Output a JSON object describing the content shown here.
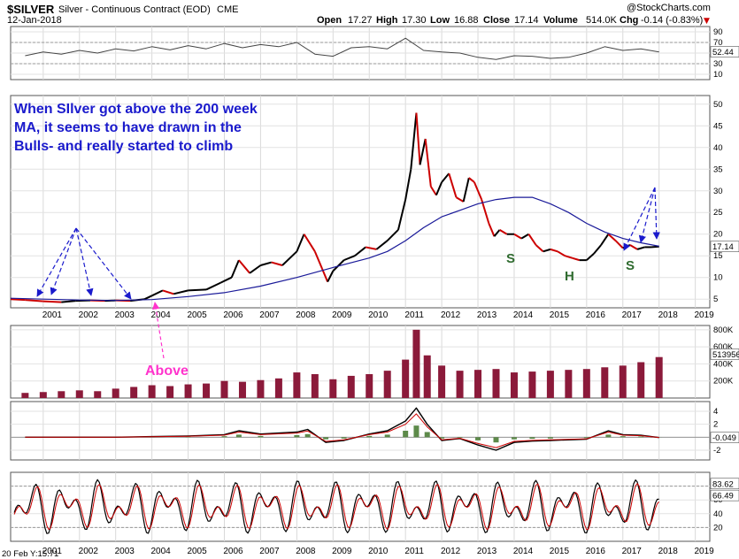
{
  "header": {
    "symbol": "$SILVER",
    "name": "Silver - Continuous Contract (EOD)",
    "exchange": "CME",
    "date": "12-Jan-2018",
    "open_label": "Open",
    "open": "17.27",
    "high_label": "High",
    "high": "17.30",
    "low_label": "Low",
    "low": "16.88",
    "close_label": "Close",
    "close": "17.14",
    "volume_label": "Volume",
    "volume": "514.0K",
    "chg_label": "Chg",
    "chg": "-0.14 (-0.83%)",
    "chg_arrow": "▼",
    "watermark": "@StockCharts.com"
  },
  "footer": {
    "crosshair": "20 Feb Y:15.71"
  },
  "annotations": {
    "note_lines": [
      "When SIlver got above the 200 week",
      "MA,  it seems to have drawn in the",
      "Bulls- and really started to climb"
    ],
    "above": "Above",
    "s1": "S",
    "h": "H",
    "s2": "S"
  },
  "colors": {
    "price_up": "#000000",
    "price_down": "#cc0000",
    "ma": "#1a1a99",
    "annotation": "#1a1acc",
    "above": "#ff33cc",
    "pattern": "#2f6b2f",
    "volume": "#8b1a3a",
    "hist": "#5d8a4a",
    "close_badge": "#1a1a99"
  },
  "chart_data": [
    {
      "type": "line",
      "panel": "rsi",
      "title": "",
      "y_ticks": [
        90,
        70,
        50,
        30,
        10
      ],
      "ylim": [
        0,
        100
      ],
      "last_value": "52.44",
      "reference_lines": [
        70,
        30
      ],
      "x": [
        2000.5,
        2001,
        2001.5,
        2002,
        2002.5,
        2003,
        2003.5,
        2004,
        2004.5,
        2005,
        2005.5,
        2006,
        2006.5,
        2007,
        2007.5,
        2008,
        2008.5,
        2009,
        2009.5,
        2010,
        2010.5,
        2011,
        2011.5,
        2012,
        2012.5,
        2013,
        2013.5,
        2014,
        2014.5,
        2015,
        2015.5,
        2016,
        2016.5,
        2017,
        2017.5,
        2018
      ],
      "values": [
        45,
        52,
        48,
        55,
        50,
        58,
        54,
        62,
        56,
        64,
        58,
        68,
        60,
        66,
        62,
        70,
        48,
        44,
        60,
        62,
        58,
        78,
        55,
        52,
        50,
        42,
        38,
        45,
        44,
        40,
        42,
        50,
        62,
        55,
        58,
        52
      ]
    },
    {
      "type": "line",
      "panel": "price",
      "y_ticks": [
        50,
        45,
        40,
        35,
        30,
        25,
        20,
        15,
        10,
        5
      ],
      "ylim": [
        3,
        52
      ],
      "last_value": "17.14",
      "x_ticks": [
        "2001",
        "2002",
        "2003",
        "2004",
        "2005",
        "2006",
        "2007",
        "2008",
        "2009",
        "2010",
        "2011",
        "2012",
        "2013",
        "2014",
        "2015",
        "2016",
        "2017",
        "2018",
        "2019"
      ],
      "xlim": [
        2000.1,
        2019.4
      ],
      "series": [
        {
          "x": [
            2000.1,
            2000.5,
            2001,
            2001.5,
            2001.9,
            2002.3,
            2002.7,
            2003,
            2003.4,
            2003.8,
            2004.0,
            2004.3,
            2004.6,
            2005,
            2005.5,
            2005.9,
            2006.2,
            2006.4,
            2006.7,
            2007,
            2007.3,
            2007.6,
            2008.0,
            2008.2,
            2008.5,
            2008.7,
            2008.85,
            2009.0,
            2009.3,
            2009.6,
            2009.9,
            2010.2,
            2010.5,
            2010.8,
            2011.0,
            2011.15,
            2011.3,
            2011.4,
            2011.55,
            2011.7,
            2011.85,
            2012.0,
            2012.2,
            2012.4,
            2012.6,
            2012.75,
            2012.9,
            2013.1,
            2013.3,
            2013.45,
            2013.6,
            2013.8,
            2014.0,
            2014.2,
            2014.4,
            2014.6,
            2014.8,
            2015.0,
            2015.2,
            2015.4,
            2015.6,
            2015.8,
            2016.0,
            2016.2,
            2016.4,
            2016.6,
            2016.8,
            2017.0,
            2017.2,
            2017.4,
            2017.6,
            2017.8,
            2018.0
          ],
          "values": [
            5.0,
            4.8,
            4.5,
            4.3,
            4.6,
            4.7,
            4.6,
            4.7,
            4.6,
            5.0,
            5.8,
            7.0,
            6.2,
            7.0,
            7.2,
            8.8,
            10.0,
            14.0,
            11.0,
            12.8,
            13.5,
            12.8,
            16.0,
            20.0,
            16.0,
            12.0,
            9.0,
            11.5,
            14.0,
            15.0,
            17.0,
            16.5,
            18.5,
            21.0,
            28.0,
            35.0,
            48.0,
            36.0,
            42.0,
            31.0,
            29.0,
            32.0,
            34.0,
            28.5,
            27.5,
            33.0,
            32.0,
            28.0,
            22.5,
            19.5,
            21.0,
            20.0,
            20.0,
            19.0,
            20.0,
            17.5,
            16.0,
            16.5,
            16.0,
            15.0,
            14.5,
            14.0,
            14.0,
            15.5,
            17.5,
            20.0,
            18.5,
            16.8,
            17.5,
            16.5,
            17.0,
            17.0,
            17.14
          ]
        },
        {
          "name": "",
          "x": [
            2000.1,
            2001,
            2002,
            2003,
            2004,
            2005,
            2006,
            2007,
            2008,
            2009,
            2010,
            2010.5,
            2011,
            2011.5,
            2012,
            2012.5,
            2013,
            2013.5,
            2014,
            2014.5,
            2015,
            2015.5,
            2016,
            2016.5,
            2017,
            2017.5,
            2018
          ],
          "values": [
            5.2,
            5.0,
            4.8,
            4.7,
            4.9,
            5.6,
            6.5,
            8.0,
            10.0,
            12.3,
            14.5,
            16.0,
            18.5,
            21.5,
            24.0,
            25.5,
            27.0,
            28.0,
            28.5,
            28.5,
            27.0,
            25.0,
            22.5,
            20.5,
            19.0,
            18.0,
            17.2
          ]
        }
      ]
    },
    {
      "type": "bar",
      "panel": "volume",
      "y_ticks": [
        "800K",
        "600K",
        "400K",
        "200K"
      ],
      "ylim": [
        0,
        850000
      ],
      "last_value": "513956",
      "x": [
        2000.5,
        2001,
        2001.5,
        2002,
        2002.5,
        2003,
        2003.5,
        2004,
        2004.5,
        2005,
        2005.5,
        2006,
        2006.5,
        2007,
        2007.5,
        2008,
        2008.5,
        2009,
        2009.5,
        2010,
        2010.5,
        2011,
        2011.3,
        2011.6,
        2012,
        2012.5,
        2013,
        2013.5,
        2014,
        2014.5,
        2015,
        2015.5,
        2016,
        2016.5,
        2017,
        2017.5,
        2018
      ],
      "values": [
        60000,
        70000,
        80000,
        90000,
        80000,
        110000,
        130000,
        150000,
        140000,
        160000,
        170000,
        200000,
        190000,
        210000,
        230000,
        300000,
        280000,
        220000,
        260000,
        280000,
        320000,
        450000,
        800000,
        500000,
        380000,
        320000,
        330000,
        340000,
        300000,
        310000,
        320000,
        330000,
        340000,
        360000,
        380000,
        420000,
        480000
      ]
    },
    {
      "type": "line",
      "panel": "macd",
      "y_ticks": [
        "4",
        "2",
        "0",
        "-2"
      ],
      "ylim": [
        -3.5,
        5.5
      ],
      "last_value": "-0.049",
      "x": [
        2000.5,
        2001,
        2002,
        2003,
        2004,
        2005,
        2006,
        2006.4,
        2007,
        2008,
        2008.3,
        2008.8,
        2009.3,
        2010,
        2010.5,
        2011,
        2011.3,
        2011.6,
        2012,
        2012.5,
        2013,
        2013.5,
        2014,
        2014.5,
        2015,
        2016,
        2016.6,
        2017,
        2017.5,
        2018
      ],
      "values": [
        0,
        0,
        0,
        0,
        0.1,
        0.2,
        0.4,
        1.0,
        0.5,
        0.8,
        1.2,
        -0.8,
        -0.5,
        0.5,
        1.0,
        2.5,
        4.5,
        2.0,
        -0.5,
        -0.2,
        -1.2,
        -2.0,
        -0.8,
        -0.6,
        -0.5,
        -0.3,
        1.0,
        0.4,
        0.3,
        -0.049
      ]
    },
    {
      "type": "line",
      "panel": "stochastic",
      "y_ticks": [
        "80",
        "60",
        "40",
        "20"
      ],
      "ylim": [
        0,
        100
      ],
      "values_labels": [
        "83.62",
        "66.49"
      ],
      "reference_lines": [
        80,
        20
      ]
    }
  ]
}
